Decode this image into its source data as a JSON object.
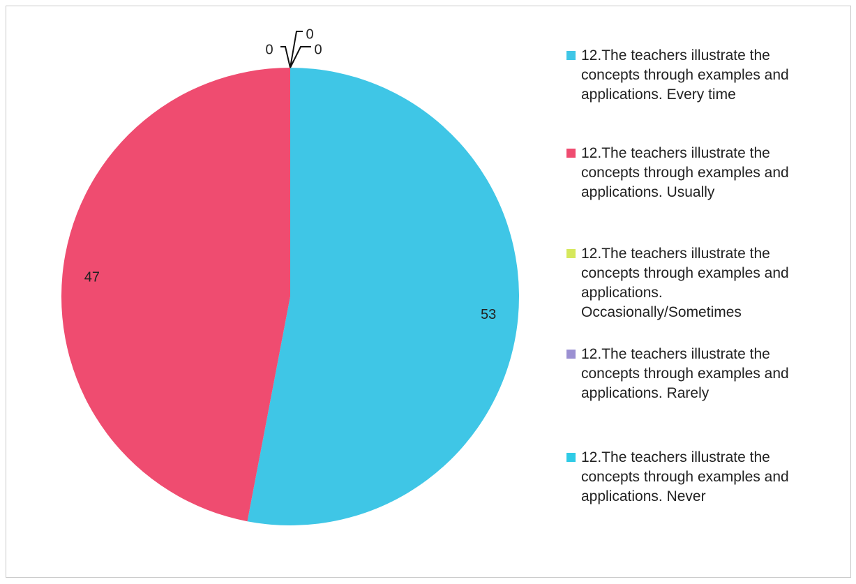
{
  "chart_data": {
    "type": "pie",
    "categories": [
      "12.The teachers illustrate the concepts through examples and applications. Every time",
      "12.The teachers illustrate the concepts through examples and applications. Usually",
      "12.The teachers illustrate the concepts through examples and applications. Occasionally/Sometimes",
      "12.The teachers illustrate the concepts through examples and applications. Rarely",
      "12.The teachers illustrate the concepts through examples and applications. Never"
    ],
    "values": [
      53,
      47,
      0,
      0,
      0
    ],
    "colors": [
      "#3fc6e6",
      "#ef4c70",
      "#d6e85c",
      "#9b90d2",
      "#2fcbe6"
    ],
    "legend": "right"
  }
}
